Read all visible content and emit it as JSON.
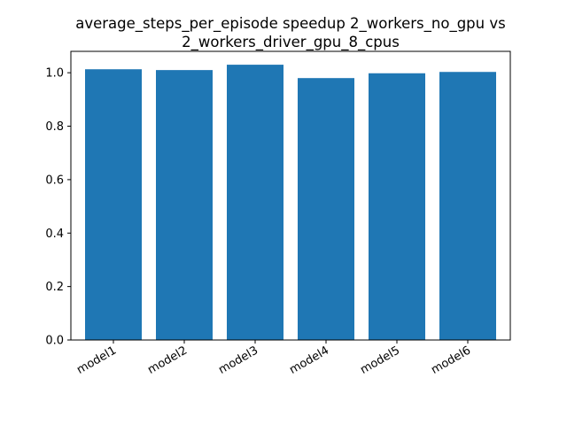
{
  "chart_data": {
    "type": "bar",
    "title_lines": [
      "average_steps_per_episode speedup 2_workers_no_gpu vs",
      "2_workers_driver_gpu_8_cpus"
    ],
    "categories": [
      "model1",
      "model2",
      "model3",
      "model4",
      "model5",
      "model6"
    ],
    "values": [
      1.013,
      1.01,
      1.03,
      0.98,
      0.998,
      1.003
    ],
    "ylim": [
      0,
      1.08
    ],
    "yticks": [
      "0.0",
      "0.2",
      "0.4",
      "0.6",
      "0.8",
      "1.0"
    ],
    "xlabel": "",
    "ylabel": "",
    "grid": false,
    "legend": false,
    "bar_color": "#1f77b4",
    "x_tick_rotation_deg": -30
  }
}
